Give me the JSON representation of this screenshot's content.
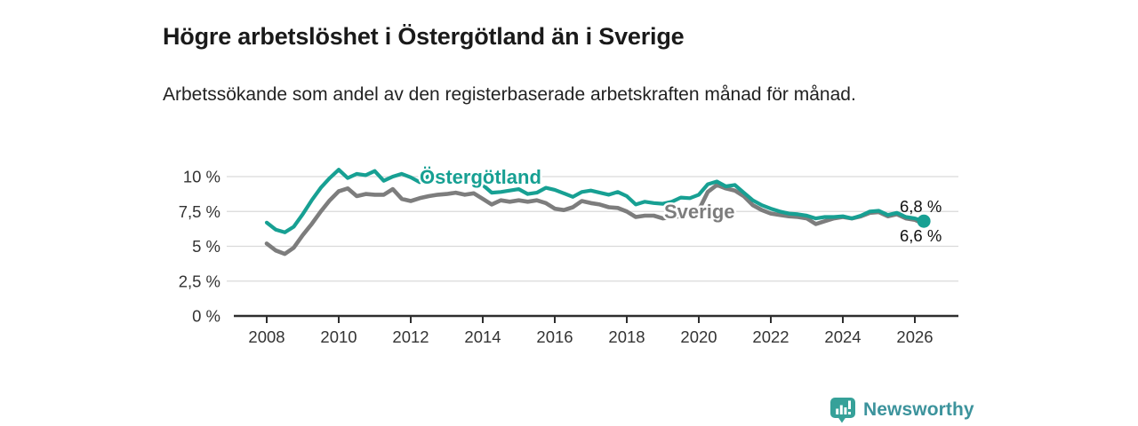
{
  "header": {
    "title": "Högre arbetslöshet i Östergötland än i Sverige",
    "subtitle": "Arbetssökande som andel av den registerbaserade arbetskraften månad för månad."
  },
  "footer": {
    "brand": "Newsworthy",
    "logo_icon": "bar-chart-speech-bubble-icon",
    "brand_color": "#3c939c",
    "icon_color": "#36a199"
  },
  "chart_data": {
    "type": "line",
    "title": "Högre arbetslöshet i Östergötland än i Sverige",
    "xlabel": "",
    "ylabel": "Arbetssökande som andel av den registerbaserade arbetskraften",
    "unit": "%",
    "decimal_separator": ",",
    "grid": true,
    "xlim": [
      2007.05,
      2027.2
    ],
    "ylim": [
      0,
      10.8
    ],
    "x_ticks": [
      {
        "value": 2008,
        "label": "2008"
      },
      {
        "value": 2010,
        "label": "2010"
      },
      {
        "value": 2012,
        "label": "2012"
      },
      {
        "value": 2014,
        "label": "2014"
      },
      {
        "value": 2016,
        "label": "2016"
      },
      {
        "value": 2018,
        "label": "2018"
      },
      {
        "value": 2020,
        "label": "2020"
      },
      {
        "value": 2022,
        "label": "2022"
      },
      {
        "value": 2024,
        "label": "2024"
      },
      {
        "value": 2026,
        "label": "2026"
      }
    ],
    "y_ticks": [
      {
        "value": 0,
        "label": "0 %"
      },
      {
        "value": 2.5,
        "label": "2,5 %"
      },
      {
        "value": 5,
        "label": "5 %"
      },
      {
        "value": 7.5,
        "label": "7,5 %"
      },
      {
        "value": 10,
        "label": "10 %"
      }
    ],
    "legend_position": "inline-labels",
    "series": [
      {
        "name": "Sverige",
        "color": "#7d7d7d",
        "end_label": "6,6 %",
        "end_dot": false,
        "points": [
          [
            2008.0,
            5.2
          ],
          [
            2008.25,
            4.7
          ],
          [
            2008.5,
            4.45
          ],
          [
            2008.75,
            4.9
          ],
          [
            2009.0,
            5.8
          ],
          [
            2009.25,
            6.6
          ],
          [
            2009.5,
            7.5
          ],
          [
            2009.75,
            8.3
          ],
          [
            2010.0,
            8.95
          ],
          [
            2010.25,
            9.15
          ],
          [
            2010.5,
            8.6
          ],
          [
            2010.75,
            8.75
          ],
          [
            2011.0,
            8.7
          ],
          [
            2011.25,
            8.7
          ],
          [
            2011.5,
            9.1
          ],
          [
            2011.75,
            8.4
          ],
          [
            2012.0,
            8.25
          ],
          [
            2012.25,
            8.45
          ],
          [
            2012.5,
            8.6
          ],
          [
            2012.75,
            8.7
          ],
          [
            2013.0,
            8.75
          ],
          [
            2013.25,
            8.85
          ],
          [
            2013.5,
            8.7
          ],
          [
            2013.75,
            8.8
          ],
          [
            2014.0,
            8.4
          ],
          [
            2014.25,
            8.0
          ],
          [
            2014.5,
            8.3
          ],
          [
            2014.75,
            8.2
          ],
          [
            2015.0,
            8.3
          ],
          [
            2015.25,
            8.2
          ],
          [
            2015.5,
            8.3
          ],
          [
            2015.75,
            8.1
          ],
          [
            2016.0,
            7.7
          ],
          [
            2016.25,
            7.6
          ],
          [
            2016.5,
            7.8
          ],
          [
            2016.75,
            8.25
          ],
          [
            2017.0,
            8.1
          ],
          [
            2017.25,
            8.0
          ],
          [
            2017.5,
            7.8
          ],
          [
            2017.75,
            7.75
          ],
          [
            2018.0,
            7.5
          ],
          [
            2018.25,
            7.1
          ],
          [
            2018.5,
            7.2
          ],
          [
            2018.75,
            7.2
          ],
          [
            2019.0,
            7.0
          ],
          [
            2019.25,
            7.1
          ],
          [
            2019.5,
            7.15
          ],
          [
            2019.75,
            7.3
          ],
          [
            2020.0,
            7.6
          ],
          [
            2020.25,
            8.9
          ],
          [
            2020.5,
            9.4
          ],
          [
            2020.75,
            9.15
          ],
          [
            2021.0,
            9.0
          ],
          [
            2021.25,
            8.6
          ],
          [
            2021.5,
            7.95
          ],
          [
            2021.75,
            7.6
          ],
          [
            2022.0,
            7.35
          ],
          [
            2022.25,
            7.25
          ],
          [
            2022.5,
            7.15
          ],
          [
            2022.75,
            7.1
          ],
          [
            2023.0,
            7.0
          ],
          [
            2023.25,
            6.6
          ],
          [
            2023.5,
            6.8
          ],
          [
            2023.75,
            7.0
          ],
          [
            2024.0,
            7.1
          ],
          [
            2024.25,
            7.0
          ],
          [
            2024.5,
            7.15
          ],
          [
            2024.75,
            7.4
          ],
          [
            2025.0,
            7.45
          ],
          [
            2025.25,
            7.15
          ],
          [
            2025.5,
            7.3
          ],
          [
            2025.75,
            7.0
          ],
          [
            2026.0,
            6.9
          ],
          [
            2026.25,
            6.6
          ]
        ]
      },
      {
        "name": "Östergötland",
        "color": "#17a093",
        "end_label": "6,8 %",
        "end_dot": true,
        "points": [
          [
            2008.0,
            6.7
          ],
          [
            2008.25,
            6.2
          ],
          [
            2008.5,
            6.0
          ],
          [
            2008.75,
            6.4
          ],
          [
            2009.0,
            7.3
          ],
          [
            2009.25,
            8.3
          ],
          [
            2009.5,
            9.2
          ],
          [
            2009.75,
            9.9
          ],
          [
            2010.0,
            10.5
          ],
          [
            2010.25,
            9.9
          ],
          [
            2010.5,
            10.2
          ],
          [
            2010.75,
            10.1
          ],
          [
            2011.0,
            10.4
          ],
          [
            2011.25,
            9.7
          ],
          [
            2011.5,
            10.0
          ],
          [
            2011.75,
            10.2
          ],
          [
            2012.0,
            9.95
          ],
          [
            2012.25,
            9.6
          ],
          [
            2012.5,
            10.05
          ],
          [
            2012.75,
            9.9
          ],
          [
            2013.0,
            10.0
          ],
          [
            2013.25,
            9.85
          ],
          [
            2013.5,
            9.95
          ],
          [
            2013.75,
            9.7
          ],
          [
            2014.0,
            9.4
          ],
          [
            2014.25,
            8.85
          ],
          [
            2014.5,
            8.9
          ],
          [
            2014.75,
            9.0
          ],
          [
            2015.0,
            9.1
          ],
          [
            2015.25,
            8.75
          ],
          [
            2015.5,
            8.85
          ],
          [
            2015.75,
            9.2
          ],
          [
            2016.0,
            9.05
          ],
          [
            2016.25,
            8.8
          ],
          [
            2016.5,
            8.55
          ],
          [
            2016.75,
            8.9
          ],
          [
            2017.0,
            9.0
          ],
          [
            2017.25,
            8.85
          ],
          [
            2017.5,
            8.7
          ],
          [
            2017.75,
            8.9
          ],
          [
            2018.0,
            8.6
          ],
          [
            2018.25,
            8.0
          ],
          [
            2018.5,
            8.2
          ],
          [
            2018.75,
            8.1
          ],
          [
            2019.0,
            8.05
          ],
          [
            2019.25,
            8.2
          ],
          [
            2019.5,
            8.5
          ],
          [
            2019.75,
            8.45
          ],
          [
            2020.0,
            8.7
          ],
          [
            2020.25,
            9.45
          ],
          [
            2020.5,
            9.65
          ],
          [
            2020.75,
            9.3
          ],
          [
            2021.0,
            9.4
          ],
          [
            2021.25,
            8.85
          ],
          [
            2021.5,
            8.3
          ],
          [
            2021.75,
            7.95
          ],
          [
            2022.0,
            7.7
          ],
          [
            2022.25,
            7.5
          ],
          [
            2022.5,
            7.35
          ],
          [
            2022.75,
            7.3
          ],
          [
            2023.0,
            7.2
          ],
          [
            2023.25,
            7.0
          ],
          [
            2023.5,
            7.1
          ],
          [
            2023.75,
            7.1
          ],
          [
            2024.0,
            7.15
          ],
          [
            2024.25,
            7.0
          ],
          [
            2024.5,
            7.2
          ],
          [
            2024.75,
            7.5
          ],
          [
            2025.0,
            7.55
          ],
          [
            2025.25,
            7.25
          ],
          [
            2025.5,
            7.4
          ],
          [
            2025.75,
            7.1
          ],
          [
            2026.0,
            7.0
          ],
          [
            2026.25,
            6.8
          ]
        ]
      }
    ]
  }
}
